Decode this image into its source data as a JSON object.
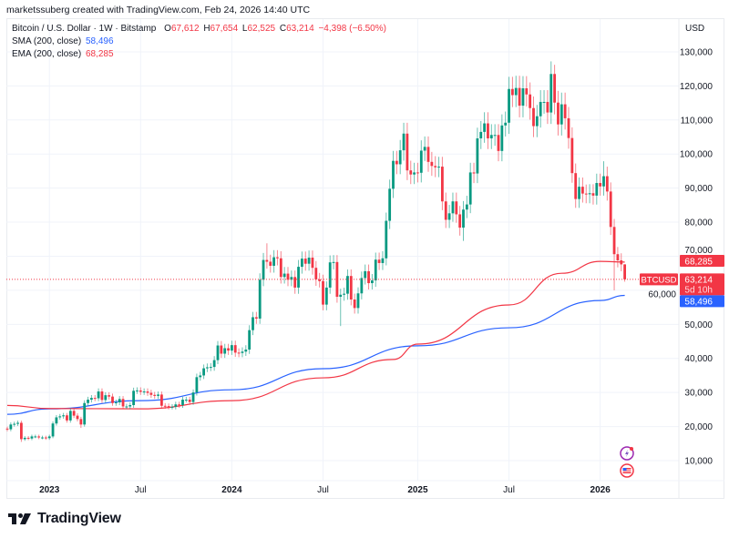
{
  "credit": "marketssuberg created with TradingView.com, Feb 24, 2026 14:40 UTC",
  "legend": {
    "symbol": "Bitcoin / U.S. Dollar · 1W · Bitstamp",
    "o_label": "O",
    "o": "67,612",
    "h_label": "H",
    "h": "67,654",
    "l_label": "L",
    "l": "62,525",
    "c_label": "C",
    "c": "63,214",
    "change": "−4,398 (−6.50%)",
    "sma_label": "SMA (200, close)",
    "sma_value": "58,496",
    "ema_label": "EMA (200, close)",
    "ema_value": "68,285"
  },
  "currency": "USD",
  "tags": {
    "ema": "68,285",
    "symbol": "BTCUSD",
    "price": "63,214",
    "countdown": "5d 10h",
    "sma": "58,496"
  },
  "brand": "TradingView",
  "colors": {
    "up": "#089981",
    "down": "#f23645",
    "sma": "#2962ff",
    "ema": "#f23645",
    "grid": "#f0f3fa"
  },
  "icons": [
    "lightning-event-icon",
    "us-flag-icon"
  ],
  "chart_data": {
    "type": "candlestick",
    "interval": "1W",
    "start_week": "2022-10-10",
    "first_open": 19400,
    "close": [
      19200,
      20600,
      20800,
      21100,
      16300,
      16700,
      16500,
      17100,
      17100,
      16800,
      16800,
      16600,
      17100,
      20900,
      22700,
      23000,
      23300,
      21800,
      24600,
      23200,
      22200,
      20600,
      26900,
      27900,
      28400,
      28300,
      30300,
      27800,
      29200,
      28800,
      26900,
      27100,
      28100,
      25900,
      25900,
      26300,
      30500,
      30600,
      30200,
      30300,
      29900,
      29300,
      29000,
      29400,
      26100,
      26000,
      25800,
      25800,
      26500,
      26300,
      27900,
      27900,
      27200,
      30000,
      34500,
      35000,
      37100,
      37400,
      37500,
      39500,
      43800,
      41400,
      43000,
      42300,
      43900,
      41700,
      41600,
      42000,
      42600,
      48300,
      52100,
      51700,
      63100,
      68900,
      68400,
      67200,
      69700,
      69400,
      63900,
      64900,
      63100,
      63900,
      60800,
      66900,
      69300,
      67800,
      69600,
      66600,
      63200,
      62700,
      55800,
      60800,
      68200,
      68300,
      58100,
      58700,
      59000,
      64200,
      57300,
      54800,
      59100,
      63600,
      65600,
      62100,
      62900,
      69000,
      68000,
      69400,
      80400,
      89800,
      98000,
      97000,
      101100,
      106000,
      95200,
      94000,
      94600,
      94500,
      101000,
      102100,
      97700,
      96500,
      96100,
      96300,
      86100,
      80700,
      82600,
      86100,
      82300,
      78400,
      83700,
      85200,
      94600,
      94300,
      104600,
      106500,
      109000,
      104600,
      105600,
      105600,
      100900,
      108400,
      109200,
      119100,
      117300,
      119400,
      114200,
      119300,
      117500,
      113500,
      108200,
      111100,
      115300,
      115300,
      112200,
      123500,
      115100,
      108700,
      114600,
      110500,
      104700,
      94400,
      86800,
      90400,
      88400,
      88200,
      88500,
      87800,
      91500,
      90500,
      93500,
      89000,
      78600,
      70600,
      68800,
      67612,
      63214
    ],
    "extremes": [
      {
        "date": "2022-11-07",
        "low": 15500
      },
      {
        "date": "2023-03-06",
        "low": 19600
      },
      {
        "date": "2024-03-11",
        "high": 73800
      },
      {
        "date": "2024-08-05",
        "low": 49500
      },
      {
        "date": "2025-04-07",
        "low": 74500
      },
      {
        "date": "2025-10-06",
        "high": 126200
      },
      {
        "date": "2026-01-12",
        "high": 97900
      },
      {
        "date": "2026-02-02",
        "low": 60000
      },
      {
        "date": "2026-02-23",
        "high": 67654,
        "low": 62525
      }
    ],
    "sma200": [
      {
        "date": "2022-10-10",
        "value": 23600
      },
      {
        "date": "2023-01-02",
        "value": 25200
      },
      {
        "date": "2023-07-03",
        "value": 27600
      },
      {
        "date": "2024-01-01",
        "value": 30800
      },
      {
        "date": "2024-07-01",
        "value": 37000
      },
      {
        "date": "2025-01-06",
        "value": 43700
      },
      {
        "date": "2025-07-07",
        "value": 49000
      },
      {
        "date": "2026-01-05",
        "value": 57000
      },
      {
        "date": "2026-02-23",
        "value": 58496
      }
    ],
    "ema200": [
      {
        "date": "2022-10-10",
        "value": 26200
      },
      {
        "date": "2023-01-02",
        "value": 25300
      },
      {
        "date": "2023-07-03",
        "value": 25200
      },
      {
        "date": "2024-01-01",
        "value": 27600
      },
      {
        "date": "2024-07-01",
        "value": 34300
      },
      {
        "date": "2024-11-18",
        "value": 39700
      },
      {
        "date": "2025-01-06",
        "value": 44200
      },
      {
        "date": "2025-07-07",
        "value": 55700
      },
      {
        "date": "2025-10-20",
        "value": 65000
      },
      {
        "date": "2026-01-05",
        "value": 68500
      },
      {
        "date": "2026-02-23",
        "value": 68285
      }
    ],
    "y_ticks": [
      10000,
      20000,
      30000,
      40000,
      50000,
      60000,
      70000,
      80000,
      90000,
      100000,
      110000,
      120000,
      130000
    ],
    "y_tick_labels": [
      "10,000",
      "20,000",
      "30,000",
      "40,000",
      "50,000",
      "60,000",
      "70,000",
      "80,000",
      "90,000",
      "100,000",
      "110,000",
      "120,000",
      "130,000"
    ],
    "ylim": [
      2000,
      139000
    ],
    "x_ticks": [
      {
        "date": "2023-01-02",
        "label": "2023",
        "year": true
      },
      {
        "date": "2023-07-03",
        "label": "Jul",
        "year": false
      },
      {
        "date": "2024-01-01",
        "label": "2024",
        "year": true
      },
      {
        "date": "2024-07-01",
        "label": "Jul",
        "year": false
      },
      {
        "date": "2025-01-06",
        "label": "2025",
        "year": true
      },
      {
        "date": "2025-07-07",
        "label": "Jul",
        "year": false
      },
      {
        "date": "2026-01-05",
        "label": "2026",
        "year": true
      }
    ],
    "last_price": 63214,
    "grid": true
  }
}
